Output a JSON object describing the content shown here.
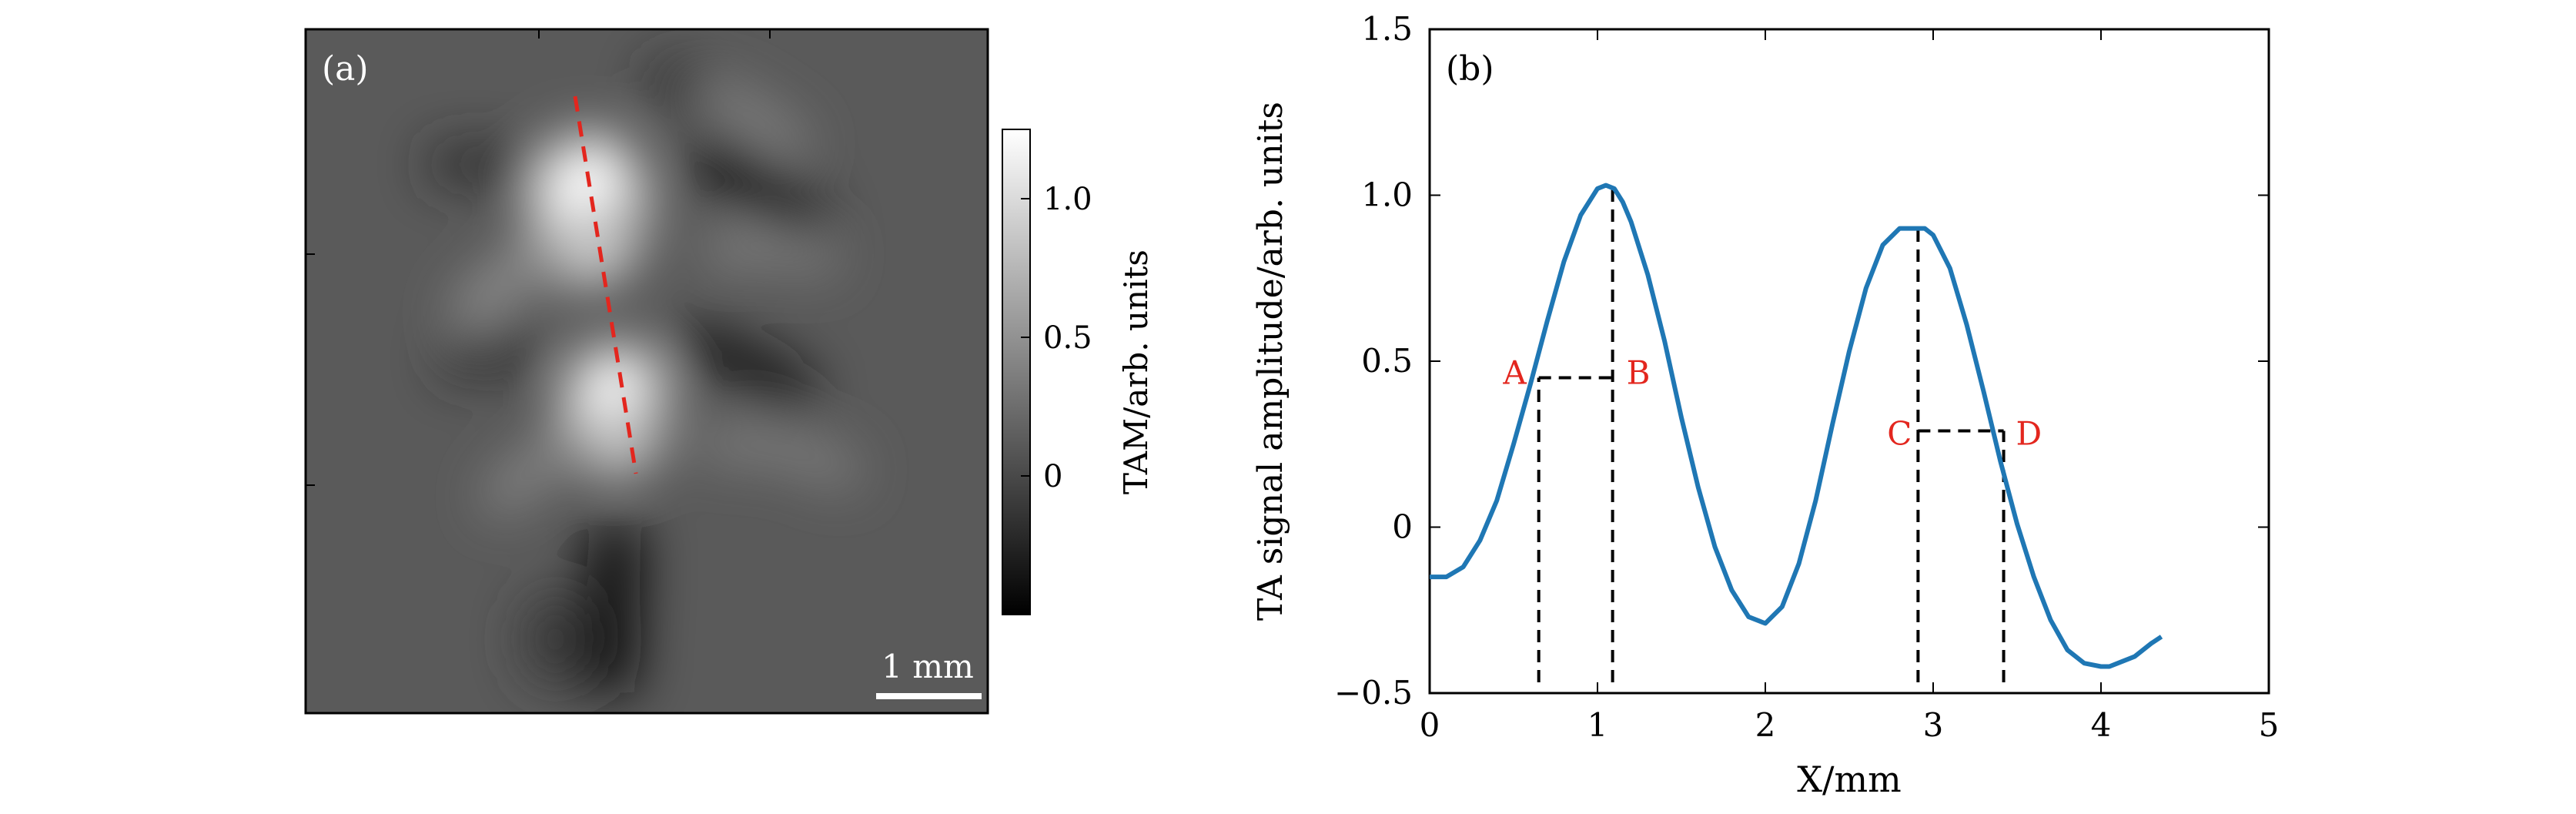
{
  "chart_data": [
    {
      "type": "heatmap",
      "panel_label": "(a)",
      "colorbar": {
        "label": "TAM/arb. units",
        "ticks": [
          {
            "value": 0,
            "label": "0"
          },
          {
            "value": 0.5,
            "label": "0.5"
          },
          {
            "value": 1.0,
            "label": "1.0"
          }
        ],
        "range": [
          -0.5,
          1.25
        ],
        "colormap": "gray"
      },
      "scale_bar": {
        "label": "1 mm"
      },
      "line_profile": {
        "color": "#e3261e",
        "style": "dashed"
      }
    },
    {
      "type": "line",
      "panel_label": "(b)",
      "xlabel": "X/mm",
      "ylabel": "TA signal amplitude/arb. units",
      "xlim": [
        0,
        5
      ],
      "ylim": [
        -0.5,
        1.5
      ],
      "xticks": [
        0,
        1,
        2,
        3,
        4,
        5
      ],
      "yticks": [
        {
          "value": -0.5,
          "label": "−0.5"
        },
        {
          "value": 0,
          "label": "0"
        },
        {
          "value": 0.5,
          "label": "0.5"
        },
        {
          "value": 1.0,
          "label": "1.0"
        },
        {
          "value": 1.5,
          "label": "1.5"
        }
      ],
      "series": [
        {
          "color": "#1f77b4",
          "x": [
            0.0,
            0.1,
            0.2,
            0.3,
            0.4,
            0.5,
            0.6,
            0.7,
            0.8,
            0.9,
            1.0,
            1.05,
            1.1,
            1.15,
            1.2,
            1.3,
            1.4,
            1.5,
            1.6,
            1.7,
            1.8,
            1.9,
            2.0,
            2.1,
            2.2,
            2.3,
            2.4,
            2.5,
            2.6,
            2.7,
            2.8,
            2.9,
            2.95,
            3.0,
            3.1,
            3.2,
            3.3,
            3.4,
            3.5,
            3.6,
            3.7,
            3.8,
            3.9,
            4.0,
            4.05,
            4.1,
            4.2,
            4.3,
            4.36
          ],
          "y": [
            -0.15,
            -0.15,
            -0.12,
            -0.04,
            0.08,
            0.25,
            0.43,
            0.62,
            0.8,
            0.94,
            1.02,
            1.03,
            1.02,
            0.98,
            0.92,
            0.76,
            0.56,
            0.33,
            0.12,
            -0.06,
            -0.19,
            -0.27,
            -0.29,
            -0.24,
            -0.11,
            0.08,
            0.31,
            0.53,
            0.72,
            0.85,
            0.9,
            0.9,
            0.9,
            0.88,
            0.78,
            0.61,
            0.41,
            0.2,
            0.01,
            -0.15,
            -0.28,
            -0.37,
            -0.41,
            -0.42,
            -0.42,
            -0.41,
            -0.39,
            -0.35,
            -0.33
          ]
        }
      ],
      "markers": {
        "A": {
          "label": "A",
          "x": 0.65,
          "y": 0.45
        },
        "B": {
          "label": "B",
          "x": 1.09,
          "y": 0.45,
          "peak_y": 1.03
        },
        "C": {
          "label": "C",
          "x": 2.91,
          "y": 0.29,
          "peak_y": 0.9
        },
        "D": {
          "label": "D",
          "x": 3.42,
          "y": 0.29
        },
        "color": "#e3261e"
      }
    }
  ]
}
